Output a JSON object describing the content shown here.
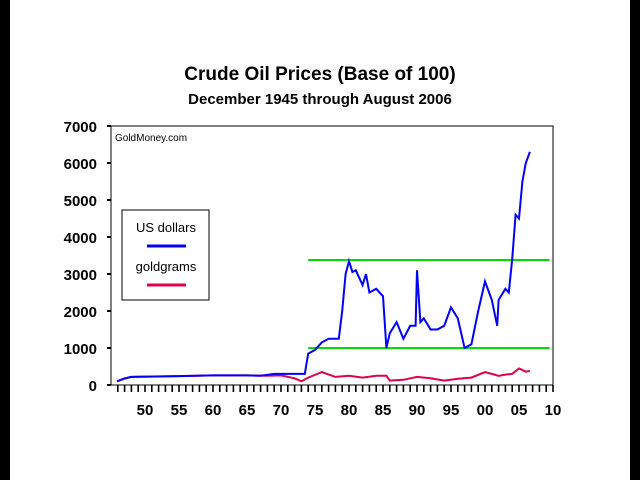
{
  "chart_data": {
    "type": "line",
    "title": "Crude Oil Prices (Base of 100)",
    "subtitle": "December 1945 through August 2006",
    "watermark": "GoldMoney.com",
    "xlabel": "",
    "ylabel": "",
    "xlim": [
      1945,
      2010
    ],
    "ylim": [
      0,
      7000
    ],
    "yticks": [
      0,
      1000,
      2000,
      3000,
      4000,
      5000,
      6000,
      7000
    ],
    "ytick_labels": [
      "0",
      "1000",
      "2000",
      "3000",
      "4000",
      "5000",
      "6000",
      "7000"
    ],
    "xticks": [
      1950,
      1955,
      1960,
      1965,
      1970,
      1975,
      1980,
      1985,
      1990,
      1995,
      2000,
      2005,
      2010
    ],
    "xtick_labels": [
      "50",
      "55",
      "60",
      "65",
      "70",
      "75",
      "80",
      "85",
      "90",
      "95",
      "00",
      "05",
      "10"
    ],
    "legend_position": "left",
    "series": [
      {
        "name": "US dollars",
        "color": "#0000ff",
        "x": [
          1945.9,
          1947,
          1948,
          1955,
          1960,
          1965,
          1967,
          1969,
          1973.5,
          1974,
          1975,
          1976,
          1977,
          1978.5,
          1979,
          1979.5,
          1980,
          1980.5,
          1981,
          1982,
          1982.5,
          1983,
          1984,
          1985,
          1985.5,
          1986,
          1987,
          1988,
          1989,
          1989.8,
          1990,
          1990.5,
          1991,
          1992,
          1993,
          1994,
          1995,
          1996,
          1997,
          1998,
          1999,
          2000,
          2001,
          2001.8,
          2002,
          2003,
          2003.5,
          2004,
          2004.5,
          2005,
          2005.5,
          2006,
          2006.6
        ],
        "y": [
          100,
          180,
          220,
          240,
          260,
          260,
          250,
          300,
          300,
          850,
          950,
          1150,
          1250,
          1250,
          2000,
          3000,
          3350,
          3050,
          3100,
          2700,
          3000,
          2500,
          2600,
          2400,
          1000,
          1400,
          1700,
          1250,
          1600,
          1600,
          3100,
          1700,
          1800,
          1500,
          1500,
          1600,
          2100,
          1800,
          1000,
          1100,
          2000,
          2800,
          2300,
          1600,
          2300,
          2600,
          2500,
          3400,
          4600,
          4500,
          5500,
          6000,
          6300
        ]
      },
      {
        "name": "goldgrams",
        "color": "#e0004a",
        "x": [
          1945.9,
          1947,
          1948,
          1955,
          1960,
          1965,
          1968,
          1970,
          1972,
          1973,
          1974,
          1976,
          1978,
          1980,
          1982,
          1984,
          1985.5,
          1986,
          1988,
          1990,
          1992,
          1994,
          1996,
          1998,
          2000,
          2001,
          2002,
          2003,
          2004,
          2005,
          2006,
          2006.6
        ],
        "y": [
          100,
          170,
          220,
          240,
          260,
          260,
          250,
          260,
          180,
          100,
          200,
          350,
          220,
          250,
          200,
          250,
          250,
          120,
          140,
          220,
          180,
          120,
          170,
          200,
          350,
          300,
          250,
          280,
          300,
          450,
          360,
          380
        ]
      }
    ],
    "reference_lines": [
      {
        "y": 3380,
        "x": [
          1974,
          2009.5
        ],
        "color": "#00dd00"
      },
      {
        "y": 1000,
        "x": [
          1974,
          2009.5
        ],
        "color": "#00dd00"
      }
    ]
  }
}
